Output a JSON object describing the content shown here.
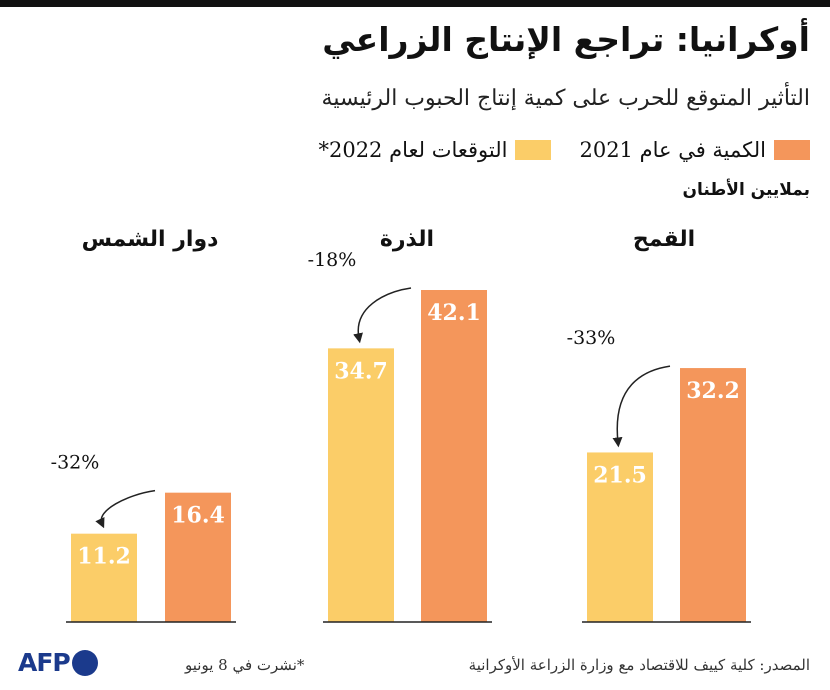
{
  "title": "أوكرانيا: تراجع الإنتاج الزراعي",
  "subtitle": "التأثير المتوقع للحرب على كمية إنتاج الحبوب الرئيسية",
  "legend": {
    "actual_label": "الكمية في عام 2021",
    "forecast_label": "التوقعات لعام 2022*"
  },
  "unit_label": "بملايين الأطنان",
  "colors": {
    "actual": "#f4965b",
    "forecast": "#fbcd68",
    "text_on_bar": "#ffffff",
    "baseline": "#222222"
  },
  "chart_data": {
    "type": "bar",
    "categories": [
      "القمح",
      "الذرة",
      "دوار الشمس"
    ],
    "series": [
      {
        "name": "الكمية في عام 2021",
        "values": [
          32.2,
          42.1,
          16.4
        ]
      },
      {
        "name": "التوقعات لعام 2022*",
        "values": [
          21.5,
          34.7,
          11.2
        ]
      }
    ],
    "change_labels": [
      "-33%",
      "-18%",
      "-32%"
    ],
    "value_labels": {
      "actual": [
        "32.2",
        "42.1",
        "16.4"
      ],
      "forecast": [
        "21.5",
        "34.7",
        "11.2"
      ]
    },
    "ylim": [
      0,
      42.1
    ],
    "grid": false,
    "legend_position": "top-right"
  },
  "footer": {
    "source": "المصدر: كلية كييف للاقتصاد مع وزارة الزراعة الأوكرانية",
    "note": "*نشرت في 8 يونيو",
    "logo_text": "AFP"
  }
}
